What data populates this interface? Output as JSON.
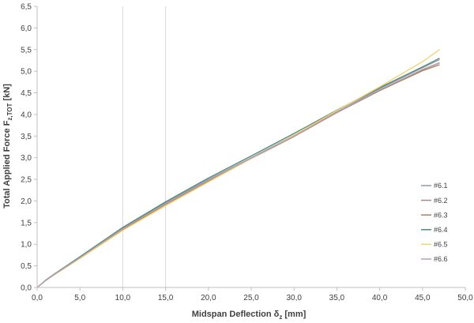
{
  "chart_data": {
    "type": "line",
    "xlabel": {
      "main": "Midspan Deflection δ",
      "sub": "z",
      "unit": " [mm]"
    },
    "ylabel": {
      "main": "Total Applied Force F",
      "sub": "z,TOT",
      "unit": " [kN]"
    },
    "xlim": [
      0,
      50
    ],
    "ylim": [
      0,
      6.5
    ],
    "xticks": [
      0,
      5,
      10,
      15,
      20,
      25,
      30,
      35,
      40,
      45,
      50
    ],
    "yticks": [
      0,
      0.5,
      1,
      1.5,
      2,
      2.5,
      3,
      3.5,
      4,
      4.5,
      5,
      5.5,
      6,
      6.5
    ],
    "xtick_labels": [
      "0,0",
      "5,0",
      "10,0",
      "15,0",
      "20,0",
      "25,0",
      "30,0",
      "35,0",
      "40,0",
      "45,0",
      "50,0"
    ],
    "ytick_labels": [
      "0,0",
      "0,5",
      "1,0",
      "1,5",
      "2,0",
      "2,5",
      "3,0",
      "3,5",
      "4,0",
      "4,5",
      "5,0",
      "5,5",
      "6,0",
      "6,5"
    ],
    "vertical_gridlines_at": [
      10,
      15
    ],
    "legend_position": "right-middle",
    "series": [
      {
        "name": "#6.1",
        "color": "#8e9aa6",
        "points": [
          [
            0,
            0
          ],
          [
            1,
            0.16
          ],
          [
            2,
            0.3
          ],
          [
            5,
            0.7
          ],
          [
            10,
            1.38
          ],
          [
            15,
            1.96
          ],
          [
            20,
            2.5
          ],
          [
            25,
            3.0
          ],
          [
            30,
            3.52
          ],
          [
            35,
            4.06
          ],
          [
            40,
            4.6
          ],
          [
            45,
            5.08
          ],
          [
            47,
            5.27
          ]
        ]
      },
      {
        "name": "#6.2",
        "color": "#a48a8a",
        "points": [
          [
            0,
            0
          ],
          [
            1,
            0.16
          ],
          [
            2,
            0.3
          ],
          [
            5,
            0.69
          ],
          [
            10,
            1.36
          ],
          [
            15,
            1.94
          ],
          [
            20,
            2.48
          ],
          [
            25,
            2.99
          ],
          [
            30,
            3.5
          ],
          [
            35,
            4.05
          ],
          [
            40,
            4.57
          ],
          [
            45,
            5.03
          ],
          [
            47,
            5.19
          ]
        ]
      },
      {
        "name": "#6.3",
        "color": "#a8845a",
        "points": [
          [
            0,
            0
          ],
          [
            1,
            0.16
          ],
          [
            2,
            0.3
          ],
          [
            5,
            0.68
          ],
          [
            10,
            1.34
          ],
          [
            15,
            1.92
          ],
          [
            20,
            2.46
          ],
          [
            25,
            2.98
          ],
          [
            30,
            3.49
          ],
          [
            35,
            4.04
          ],
          [
            40,
            4.55
          ],
          [
            45,
            5.01
          ],
          [
            47,
            5.15
          ]
        ]
      },
      {
        "name": "#6.4",
        "color": "#4f8a7a",
        "points": [
          [
            0,
            0
          ],
          [
            1,
            0.17
          ],
          [
            2,
            0.31
          ],
          [
            5,
            0.71
          ],
          [
            10,
            1.39
          ],
          [
            15,
            1.98
          ],
          [
            20,
            2.53
          ],
          [
            25,
            3.04
          ],
          [
            30,
            3.56
          ],
          [
            35,
            4.1
          ],
          [
            40,
            4.62
          ],
          [
            45,
            5.1
          ],
          [
            47,
            5.3
          ]
        ]
      },
      {
        "name": "#6.5",
        "color": "#f2d26a",
        "points": [
          [
            0,
            0
          ],
          [
            1,
            0.16
          ],
          [
            2,
            0.29
          ],
          [
            5,
            0.67
          ],
          [
            10,
            1.32
          ],
          [
            15,
            1.89
          ],
          [
            20,
            2.44
          ],
          [
            25,
            2.98
          ],
          [
            30,
            3.52
          ],
          [
            35,
            4.09
          ],
          [
            40,
            4.64
          ],
          [
            45,
            5.22
          ],
          [
            47,
            5.5
          ]
        ]
      },
      {
        "name": "#6.6",
        "color": "#b59fb6",
        "points": [
          [
            0,
            0
          ],
          [
            1,
            0.16
          ],
          [
            2,
            0.3
          ],
          [
            5,
            0.69
          ],
          [
            10,
            1.36
          ],
          [
            15,
            1.94
          ],
          [
            20,
            2.48
          ],
          [
            25,
            2.99
          ],
          [
            30,
            3.5
          ],
          [
            35,
            4.05
          ],
          [
            40,
            4.57
          ],
          [
            45,
            5.04
          ],
          [
            47,
            5.2
          ]
        ]
      }
    ]
  }
}
